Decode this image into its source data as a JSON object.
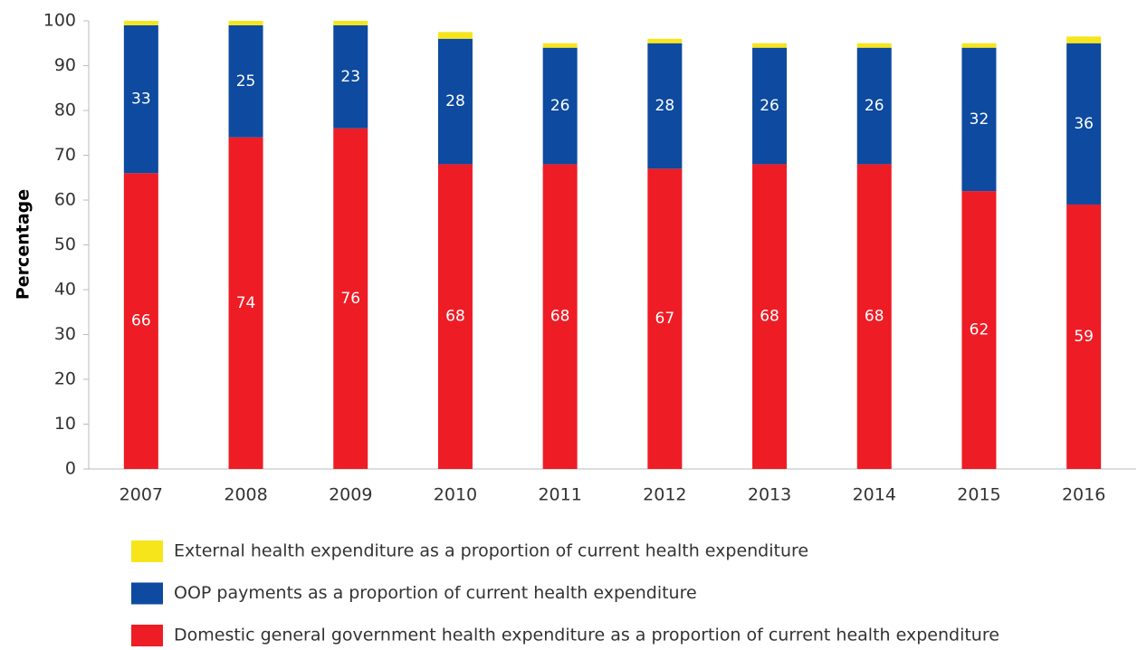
{
  "chart_data": {
    "type": "stacked_bar",
    "y_label": "Percentage",
    "categories": [
      "2007",
      "2008",
      "2009",
      "2010",
      "2011",
      "2012",
      "2013",
      "2014",
      "2015",
      "2016"
    ],
    "series": [
      {
        "name": "Domestic general government health expenditure as a proportion of current health expenditure",
        "color": "#ee1c25",
        "values": [
          66,
          74,
          76,
          68,
          68,
          67,
          68,
          68,
          62,
          59
        ]
      },
      {
        "name": "OOP payments as a proportion of current health expenditure",
        "color": "#0d4aa0",
        "values": [
          33,
          25,
          23,
          28,
          26,
          28,
          26,
          26,
          32,
          36
        ]
      },
      {
        "name": "External health expenditure as a proportion of current health expenditure",
        "color": "#f7e51c",
        "values": [
          1,
          1,
          1,
          1.5,
          1,
          1,
          1,
          1,
          1,
          1.5
        ]
      }
    ],
    "show_value_labels": [
      true,
      true,
      false
    ],
    "ylim": [
      0,
      100
    ],
    "yticks": [
      0,
      10,
      20,
      30,
      40,
      50,
      60,
      70,
      80,
      90,
      100
    ]
  }
}
